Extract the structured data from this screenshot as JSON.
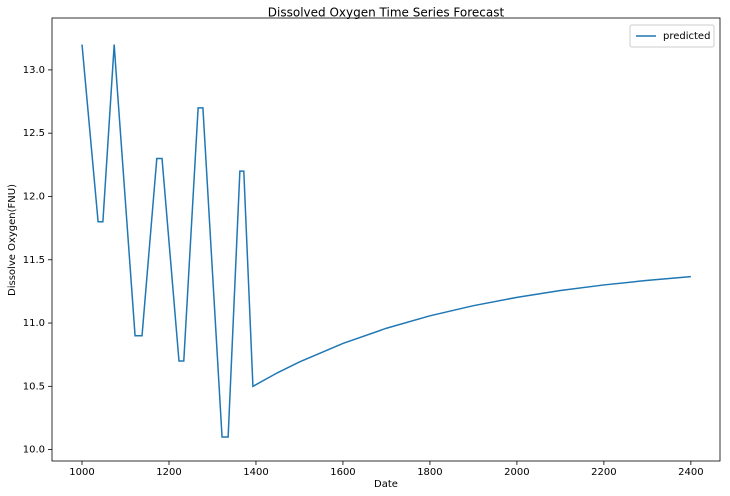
{
  "chart_data": {
    "type": "line",
    "title": "Dissolved Oxygen Time Series Forecast",
    "xlabel": "Date",
    "ylabel": "Dissolve Oxygen(FNU)",
    "legend": "upper right",
    "xlim": [
      931,
      2467
    ],
    "ylim": [
      9.91,
      13.41
    ],
    "xticks": [
      1000,
      1200,
      1400,
      1600,
      1800,
      2000,
      2200,
      2400
    ],
    "yticks": [
      {
        "value": 10.0,
        "label": "10.0"
      },
      {
        "value": 10.5,
        "label": "10.5"
      },
      {
        "value": 11.0,
        "label": "11.0"
      },
      {
        "value": 11.5,
        "label": "11.5"
      },
      {
        "value": 12.0,
        "label": "12.0"
      },
      {
        "value": 12.5,
        "label": "12.5"
      },
      {
        "value": 13.0,
        "label": "13.0"
      }
    ],
    "series": [
      {
        "name": "predicted",
        "color": "#1f77b4",
        "x": [
          1000,
          1037,
          1048,
          1074,
          1078,
          1122,
          1138,
          1172,
          1184,
          1223,
          1234,
          1267,
          1278,
          1322,
          1336,
          1363,
          1372,
          1393,
          1450,
          1500,
          1600,
          1700,
          1800,
          1900,
          2000,
          2100,
          2200,
          2300,
          2400
        ],
        "values": [
          13.2,
          11.8,
          11.8,
          13.2,
          13.0,
          10.9,
          10.9,
          12.3,
          12.3,
          10.7,
          10.7,
          12.7,
          12.7,
          10.1,
          10.1,
          12.2,
          12.2,
          10.5,
          10.608,
          10.693,
          10.839,
          10.959,
          11.057,
          11.137,
          11.203,
          11.257,
          11.301,
          11.337,
          11.367
        ]
      }
    ]
  }
}
